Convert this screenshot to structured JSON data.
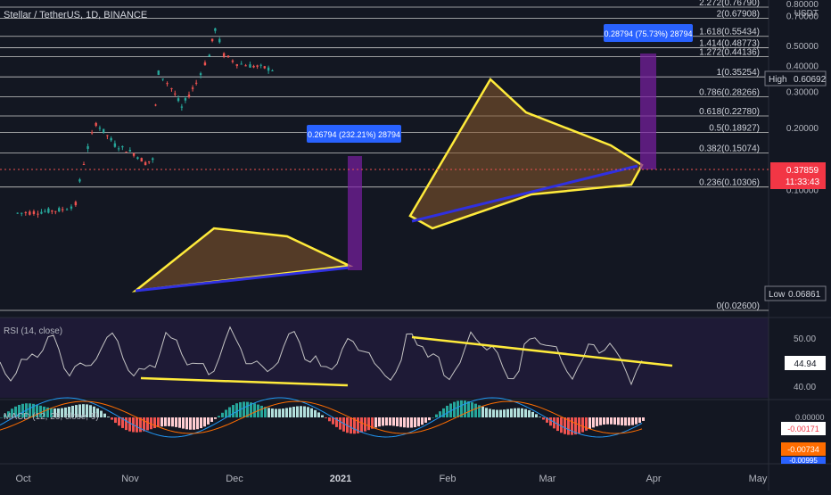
{
  "header": {
    "symbol": "Stellar / TetherUS, 1D, BINANCE"
  },
  "price_axis": {
    "currency": "USDT",
    "ticks": [
      "0.80000",
      "0.70000",
      "0.50000",
      "0.40000",
      "0.30000",
      "0.20000",
      "0.10000"
    ],
    "high_label": "High",
    "high_value": "0.60692",
    "low_label": "Low",
    "low_value": "0.06861",
    "last_price": "0.37859",
    "countdown": "11:33:43"
  },
  "fib_levels": [
    {
      "label": "2.272(0.76790)",
      "price": 0.7679
    },
    {
      "label": "2(0.67908)",
      "price": 0.67908
    },
    {
      "label": "1.618(0.55434)",
      "price": 0.55434
    },
    {
      "label": "1.414(0.48773)",
      "price": 0.48773
    },
    {
      "label": "1.272(0.44136)",
      "price": 0.44136
    },
    {
      "label": "1(0.35254)",
      "price": 0.35254
    },
    {
      "label": "0.786(0.28266)",
      "price": 0.28266
    },
    {
      "label": "0.618(0.22780)",
      "price": 0.2278
    },
    {
      "label": "0.5(0.18927)",
      "price": 0.18927
    },
    {
      "label": "0.382(0.15074)",
      "price": 0.15074
    },
    {
      "label": "0.236(0.10306)",
      "price": 0.10306
    },
    {
      "label": "0(0.02600)",
      "price": 0.026
    }
  ],
  "annotations": {
    "measure_1": "0.26794 (232.21%) 28794",
    "measure_2": "0.28794 (75.73%) 28794"
  },
  "rsi": {
    "title": "RSI (14, close)",
    "ticks": [
      "50.00",
      "40.00"
    ],
    "value": "44.94"
  },
  "macd": {
    "title": "MACD (12, 26, close, 9)",
    "tick": "0.00000",
    "values": [
      "-0.00171",
      "-0.00734",
      "-0.00995"
    ]
  },
  "time_axis": [
    "Oct",
    "Nov",
    "Dec",
    "2021",
    "Feb",
    "Mar",
    "Apr",
    "May"
  ],
  "chart_data": {
    "type": "line",
    "title": "Stellar / TetherUS, 1D, BINANCE",
    "xlabel": "",
    "ylabel": "USDT",
    "x": [
      "2020-10-01",
      "2020-10-15",
      "2020-11-01",
      "2020-11-10",
      "2020-11-24",
      "2020-12-07",
      "2020-12-20",
      "2020-12-28",
      "2021-01-02",
      "2021-01-06",
      "2021-01-15",
      "2021-01-22",
      "2021-02-01",
      "2021-02-10",
      "2021-02-14",
      "2021-02-20",
      "2021-03-01",
      "2021-03-10",
      "2021-03-20",
      "2021-03-28"
    ],
    "series": [
      {
        "values": [
          0.077,
          0.078,
          0.08,
          0.085,
          0.21,
          0.165,
          0.15,
          0.135,
          0.14,
          0.37,
          0.31,
          0.25,
          0.33,
          0.45,
          0.6,
          0.45,
          0.41,
          0.4,
          0.39,
          0.3786
        ]
      }
    ],
    "ylim": [
      0.05,
      0.8
    ],
    "grid": false
  },
  "colors": {
    "background": "#131722",
    "up": "#26a69a",
    "down": "#ef5350",
    "triangle": "#ffeb3b",
    "trendline": "#3030e0",
    "measure": "#7b1fa2",
    "label_blue": "#2962ff"
  }
}
